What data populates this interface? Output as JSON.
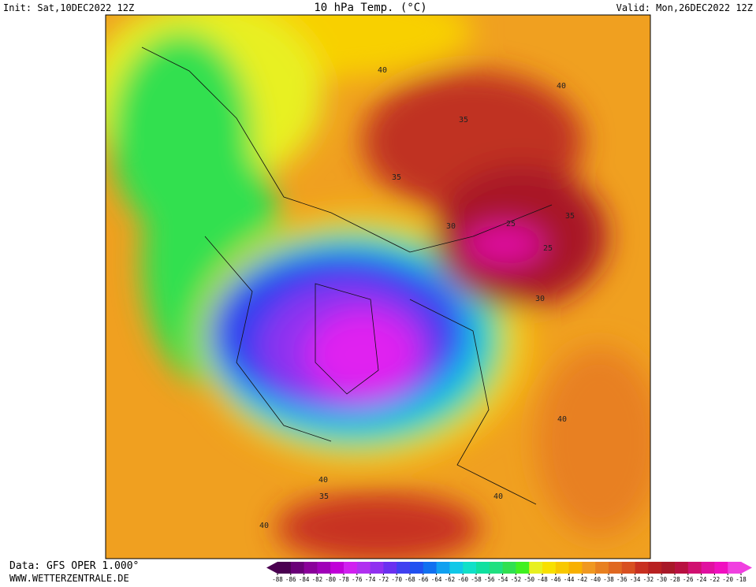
{
  "header": {
    "init": "Init: Sat,10DEC2022 12Z",
    "title": "10 hPa Temp. (°C)",
    "valid": "Valid: Mon,26DEC2022 12Z"
  },
  "footer": {
    "data": "Data: GFS OPER 1.000°",
    "site": "WWW.WETTERZENTRALE.DE"
  },
  "map": {
    "contour_labels": [
      "40",
      "40",
      "35",
      "35",
      "30",
      "25",
      "35",
      "25",
      "30",
      "40",
      "40",
      "35",
      "40",
      "40"
    ]
  },
  "colorbar": {
    "ticks": [
      -88,
      -86,
      -84,
      -82,
      -80,
      -78,
      -76,
      -74,
      -72,
      -70,
      -68,
      -66,
      -64,
      -62,
      -60,
      -58,
      -56,
      -54,
      -52,
      -50,
      -48,
      -46,
      -44,
      -42,
      -40,
      -38,
      -36,
      -34,
      -32,
      -30,
      -28,
      -26,
      -24,
      -22,
      -20,
      -18
    ],
    "colors": [
      "#4a0050",
      "#6a0078",
      "#8a009a",
      "#a000b8",
      "#c000d8",
      "#d020f0",
      "#b030f0",
      "#9030f0",
      "#6a30f0",
      "#4040f0",
      "#2050f0",
      "#1070f0",
      "#10a0f0",
      "#10c8e8",
      "#10e0c8",
      "#10e0a0",
      "#20e080",
      "#30e050",
      "#40f020",
      "#e8f020",
      "#f8e000",
      "#f8c800",
      "#f8b000",
      "#f09820",
      "#e88020",
      "#e06820",
      "#d85020",
      "#c83020",
      "#b82020",
      "#a81828",
      "#b81040",
      "#d01070",
      "#e010a0",
      "#f010c0",
      "#f040e0"
    ]
  }
}
